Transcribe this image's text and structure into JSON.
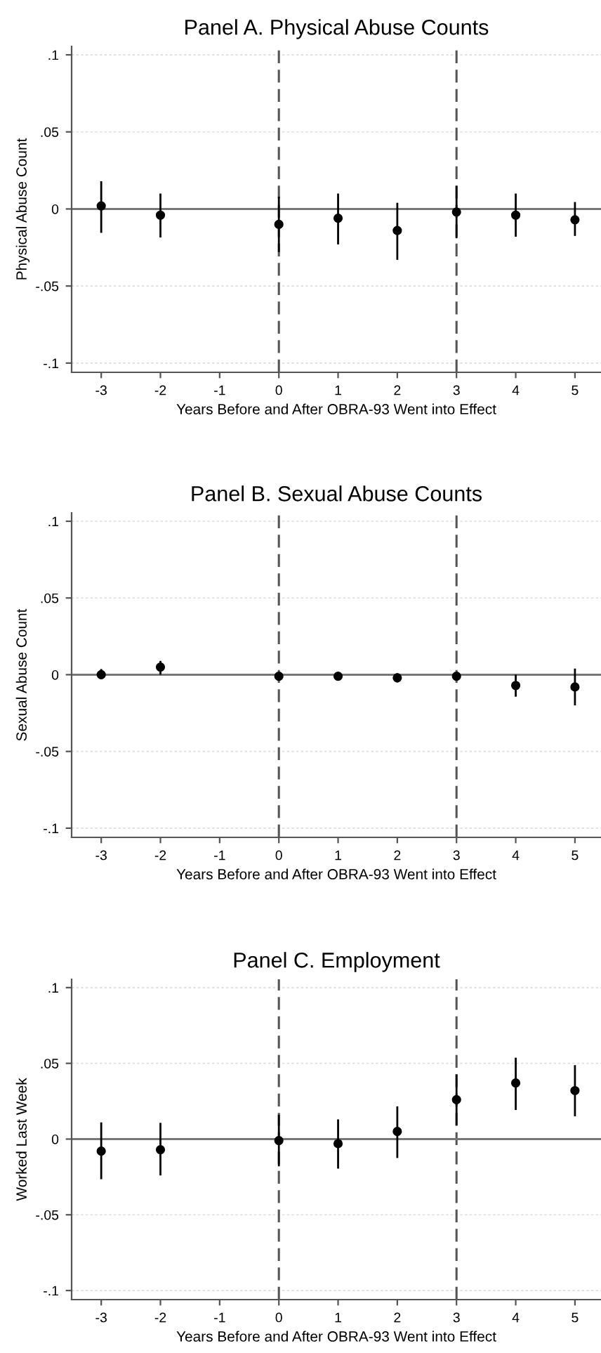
{
  "chart_data": [
    {
      "type": "scatter",
      "title": "Panel A. Physical Abuse Counts",
      "xlabel": "Years Before and After OBRA-93 Went into Effect",
      "ylabel": "Physical Abuse Count",
      "x": [
        -3,
        -2,
        0,
        1,
        2,
        3,
        4,
        5
      ],
      "xlim": [
        -3.5,
        5.44
      ],
      "xticks": [
        -3,
        -2,
        -1,
        0,
        1,
        2,
        3,
        4,
        5
      ],
      "ylim": [
        -0.106,
        0.1055
      ],
      "yticks": [
        {
          "value": -0.1,
          "label": "-.1"
        },
        {
          "value": -0.05,
          "label": "-.05"
        },
        {
          "value": 0,
          "label": "0"
        },
        {
          "value": 0.05,
          "label": ".05"
        },
        {
          "value": 0.1,
          "label": ".1"
        }
      ],
      "series": [
        {
          "color": "#000000",
          "values": [
            0.002,
            -0.004,
            -0.01,
            -0.006,
            -0.014,
            -0.002,
            -0.004,
            -0.007
          ],
          "errors": [
            [
              -0.0155,
              0.018
            ],
            [
              -0.0185,
              0.01
            ],
            [
              -0.028,
              0.008
            ],
            [
              -0.023,
              0.01
            ],
            [
              -0.033,
              0.004
            ],
            [
              -0.019,
              0.015
            ],
            [
              -0.018,
              0.01
            ],
            [
              -0.0175,
              0.0045
            ]
          ]
        }
      ],
      "marker": "circle",
      "grid": "y",
      "ref_lines": [
        {
          "axis": "x",
          "value": 0,
          "color": "#555555",
          "line_style": "dashed"
        },
        {
          "axis": "x",
          "value": 3,
          "color": "#555555",
          "line_style": "dashed"
        },
        {
          "axis": "y",
          "value": 0,
          "color": "#777777",
          "line_style": "solid"
        }
      ]
    },
    {
      "type": "scatter",
      "title": "Panel B. Sexual Abuse Counts",
      "xlabel": "Years Before and After OBRA-93 Went into Effect",
      "ylabel": "Sexual Abuse Count",
      "x": [
        -3,
        -2,
        0,
        1,
        2,
        3,
        4,
        5
      ],
      "xlim": [
        -3.5,
        5.44
      ],
      "xticks": [
        -3,
        -2,
        -1,
        0,
        1,
        2,
        3,
        4,
        5
      ],
      "ylim": [
        -0.106,
        0.1055
      ],
      "yticks": [
        {
          "value": -0.1,
          "label": "-.1"
        },
        {
          "value": -0.05,
          "label": "-.05"
        },
        {
          "value": 0,
          "label": "0"
        },
        {
          "value": 0.05,
          "label": ".05"
        },
        {
          "value": 0.1,
          "label": ".1"
        }
      ],
      "series": [
        {
          "color": "#000000",
          "values": [
            0.0,
            0.005,
            -0.001,
            -0.001,
            -0.002,
            -0.001,
            -0.007,
            -0.008
          ],
          "errors": [
            [
              -0.003,
              0.0037
            ],
            [
              0.0,
              0.009
            ],
            [
              -0.003,
              0.001
            ],
            [
              -0.0025,
              0.0005
            ],
            [
              -0.005,
              0.001
            ],
            [
              -0.003,
              0.001
            ],
            [
              -0.0143,
              0.0
            ],
            [
              -0.02,
              0.004
            ]
          ]
        }
      ],
      "marker": "circle",
      "grid": "y",
      "ref_lines": [
        {
          "axis": "x",
          "value": 0,
          "color": "#555555",
          "line_style": "dashed"
        },
        {
          "axis": "x",
          "value": 3,
          "color": "#555555",
          "line_style": "dashed"
        },
        {
          "axis": "y",
          "value": 0,
          "color": "#777777",
          "line_style": "solid"
        }
      ]
    },
    {
      "type": "scatter",
      "title": "Panel C. Employment",
      "xlabel": "Years Before and After OBRA-93 Went into Effect",
      "ylabel": "Worked Last Week",
      "x": [
        -3,
        -2,
        0,
        1,
        2,
        3,
        4,
        5
      ],
      "xlim": [
        -3.5,
        5.44
      ],
      "xticks": [
        -3,
        -2,
        -1,
        0,
        1,
        2,
        3,
        4,
        5
      ],
      "ylim": [
        -0.106,
        0.1055
      ],
      "yticks": [
        {
          "value": -0.1,
          "label": "-.1"
        },
        {
          "value": -0.05,
          "label": "-.05"
        },
        {
          "value": 0,
          "label": "0"
        },
        {
          "value": 0.05,
          "label": ".05"
        },
        {
          "value": 0.1,
          "label": ".1"
        }
      ],
      "series": [
        {
          "color": "#000000",
          "values": [
            -0.008,
            -0.007,
            -0.001,
            -0.003,
            0.005,
            0.026,
            0.037,
            0.032
          ],
          "errors": [
            [
              -0.0265,
              0.011
            ],
            [
              -0.024,
              0.0107
            ],
            [
              -0.018,
              0.016
            ],
            [
              -0.0195,
              0.013
            ],
            [
              -0.0125,
              0.0216
            ],
            [
              0.009,
              0.0427
            ],
            [
              0.0192,
              0.0537
            ],
            [
              0.015,
              0.0488
            ]
          ]
        }
      ],
      "marker": "circle",
      "grid": "y",
      "ref_lines": [
        {
          "axis": "x",
          "value": 0,
          "color": "#555555",
          "line_style": "dashed"
        },
        {
          "axis": "x",
          "value": 3,
          "color": "#555555",
          "line_style": "dashed"
        },
        {
          "axis": "y",
          "value": 0,
          "color": "#777777",
          "line_style": "solid"
        }
      ]
    }
  ]
}
